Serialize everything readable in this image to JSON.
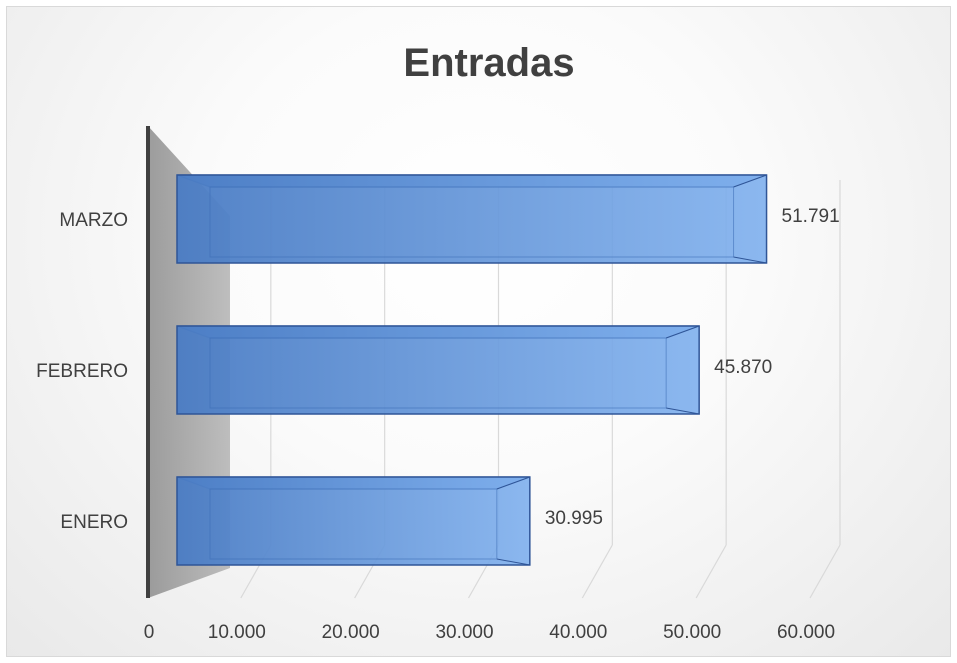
{
  "chart_data": {
    "type": "bar",
    "orientation": "horizontal",
    "style": "3d",
    "title": "Entradas",
    "categories": [
      "ENERO",
      "FEBRERO",
      "MARZO"
    ],
    "values": [
      30995,
      45870,
      51791
    ],
    "value_labels": [
      "30.995",
      "45.870",
      "51.791"
    ],
    "xlim": [
      0,
      60000
    ],
    "x_ticks": [
      0,
      10000,
      20000,
      30000,
      40000,
      50000,
      60000
    ],
    "x_tick_labels": [
      "0",
      "10.000",
      "20.000",
      "30.000",
      "40.000",
      "50.000",
      "60.000"
    ],
    "grid": true,
    "legend": "none",
    "colors": {
      "bar": "#5b8fd6",
      "bar_edge": "#2f5597",
      "wall": "#a6a6a6",
      "grid": "#d9d9d9",
      "text": "#404040"
    }
  }
}
